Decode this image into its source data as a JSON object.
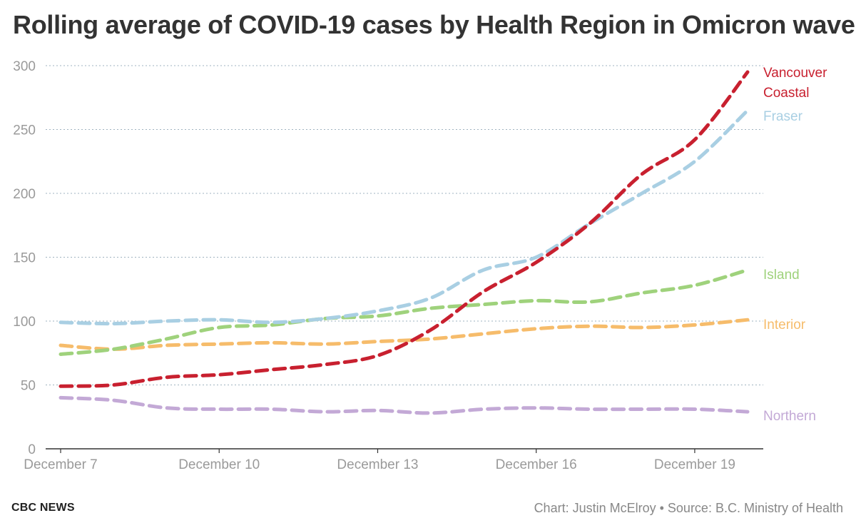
{
  "chart_data": {
    "type": "line",
    "title": "Rolling average of COVID-19 cases by Health Region in Omicron wave",
    "x": [
      "Dec 7",
      "Dec 8",
      "Dec 9",
      "Dec 10",
      "Dec 11",
      "Dec 12",
      "Dec 13",
      "Dec 14",
      "Dec 15",
      "Dec 16",
      "Dec 17",
      "Dec 18",
      "Dec 19",
      "Dec 20"
    ],
    "x_tick_labels": [
      "December 7",
      "December 10",
      "December 13",
      "December 16",
      "December 19"
    ],
    "x_tick_index": [
      0,
      3,
      6,
      9,
      12
    ],
    "y_ticks": [
      0,
      50,
      100,
      150,
      200,
      250,
      300
    ],
    "ylim": [
      0,
      300
    ],
    "grid": "horizontal dotted",
    "series": [
      {
        "name": "Vancouver Coastal",
        "label_lines": [
          "Vancouver",
          "Coastal"
        ],
        "color": "#c8202f",
        "values": [
          49,
          50,
          56,
          58,
          62,
          66,
          73,
          93,
          123,
          146,
          176,
          215,
          242,
          295
        ]
      },
      {
        "name": "Fraser",
        "label_lines": [
          "Fraser"
        ],
        "color": "#a9cfe3",
        "values": [
          99,
          98,
          100,
          101,
          99,
          102,
          108,
          118,
          140,
          150,
          176,
          200,
          225,
          265
        ]
      },
      {
        "name": "Island",
        "label_lines": [
          "Island"
        ],
        "color": "#9fd27c",
        "values": [
          74,
          78,
          86,
          95,
          97,
          102,
          104,
          110,
          113,
          116,
          115,
          122,
          128,
          140
        ]
      },
      {
        "name": "Interior",
        "label_lines": [
          "Interior"
        ],
        "color": "#f6bc6b",
        "values": [
          81,
          78,
          81,
          82,
          83,
          82,
          84,
          86,
          90,
          94,
          96,
          95,
          97,
          101
        ]
      },
      {
        "name": "Northern",
        "label_lines": [
          "Northern"
        ],
        "color": "#c3a9d6",
        "values": [
          40,
          38,
          32,
          31,
          31,
          29,
          30,
          28,
          31,
          32,
          31,
          31,
          31,
          29
        ]
      }
    ],
    "legend": "direct labels at right end of lines"
  },
  "footer": {
    "brand": "CBC NEWS",
    "credit": "Chart: Justin McElroy • Source: B.C. Ministry of Health"
  }
}
